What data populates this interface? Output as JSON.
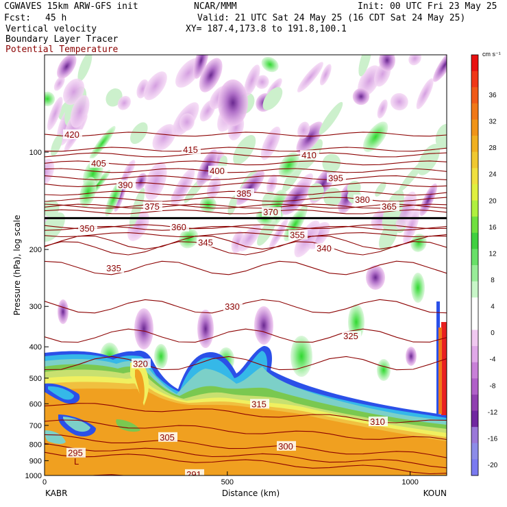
{
  "header": {
    "line1_left": "CGWAVES 15km ARW-GFS init",
    "line1_center": "NCAR/MMM",
    "line1_right": "Init: 00 UTC Fri 23 May 25",
    "fcst_label": "Fcst:",
    "fcst_value": "45 h",
    "valid": "Valid: 21 UTC Sat 24 May 25 (16 CDT Sat 24 May 25)",
    "field1": "Vertical velocity",
    "field2": "Boundary Layer Tracer",
    "field3": "Potential Temperature",
    "xy": "XY= 187.4,173.8 to 191.8,100.1"
  },
  "colors": {
    "theta_contour": "#8b0000",
    "pbl_tracer": [
      "#2b50e8",
      "#35b8e8",
      "#7cd0c8",
      "#7ac850",
      "#c8e070",
      "#f0f060",
      "#f0c040",
      "#f0a020"
    ],
    "up_motion": [
      "#eaf6ea",
      "#b8ecb8",
      "#5ce05c"
    ],
    "down_motion": [
      "#f0c8f0",
      "#d8a0e0",
      "#b06cc8",
      "#7c3aa0"
    ]
  },
  "chart_data": {
    "type": "heatmap",
    "title": "",
    "xlabel": "Distance (km)",
    "ylabel": "Pressure (hPa), log scale",
    "xlim": [
      0,
      1100
    ],
    "ylim": [
      1000,
      50
    ],
    "y_scale": "log",
    "x_ticks": [
      0,
      500,
      1000
    ],
    "y_ticks": [
      100,
      200,
      300,
      400,
      500,
      600,
      700,
      800,
      900,
      1000
    ],
    "x_endpoints": [
      "KABR",
      "KOUN"
    ],
    "colorbar": {
      "unit": "cm s⁻¹",
      "ticks": [
        36,
        32,
        28,
        24,
        20,
        16,
        12,
        8,
        4,
        0,
        -4,
        -8,
        -12,
        -16,
        -20
      ],
      "colors": [
        "#e81010",
        "#f03818",
        "#f05a18",
        "#f07818",
        "#f09418",
        "#f0b020",
        "#f0c830",
        "#f0e040",
        "#e0f040",
        "#b0f040",
        "#70e040",
        "#40d040",
        "#68e068",
        "#98ec98",
        "#c8f6c8",
        "#ffffff",
        "#ffffff",
        "#f0c8f0",
        "#e0a8e8",
        "#c880d8",
        "#b060c8",
        "#9040b0",
        "#7028a0",
        "#9a78d8",
        "#8c8ce8",
        "#7a7af0"
      ]
    },
    "theta_contours": [
      {
        "label": "420",
        "p": 88
      },
      {
        "label": "415",
        "p": 98
      },
      {
        "label": "410",
        "p": 102
      },
      {
        "label": "405",
        "p": 108
      },
      {
        "label": "400",
        "p": 114
      },
      {
        "label": "395",
        "p": 120
      },
      {
        "label": "390",
        "p": 126
      },
      {
        "label": "385",
        "p": 134
      },
      {
        "label": "380",
        "p": 140
      },
      {
        "label": "375",
        "p": 147
      },
      {
        "label": "370",
        "p": 153
      },
      {
        "label": "365",
        "p": 147
      },
      {
        "label": "360",
        "p": 170
      },
      {
        "label": "355",
        "p": 180
      },
      {
        "label": "350",
        "p": 172
      },
      {
        "label": "345",
        "p": 190
      },
      {
        "label": "340",
        "p": 198
      },
      {
        "label": "335",
        "p": 228
      },
      {
        "label": "330",
        "p": 300
      },
      {
        "label": "325",
        "p": 370
      },
      {
        "label": "320",
        "p": 450
      },
      {
        "label": "315",
        "p": 600
      },
      {
        "label": "310",
        "p": 680
      },
      {
        "label": "305",
        "p": 760
      },
      {
        "label": "300",
        "p": 810
      },
      {
        "label": "295",
        "p": 850
      },
      {
        "label": "291",
        "p": 990
      }
    ],
    "tropopause_p": 160,
    "low_marker": "L"
  }
}
